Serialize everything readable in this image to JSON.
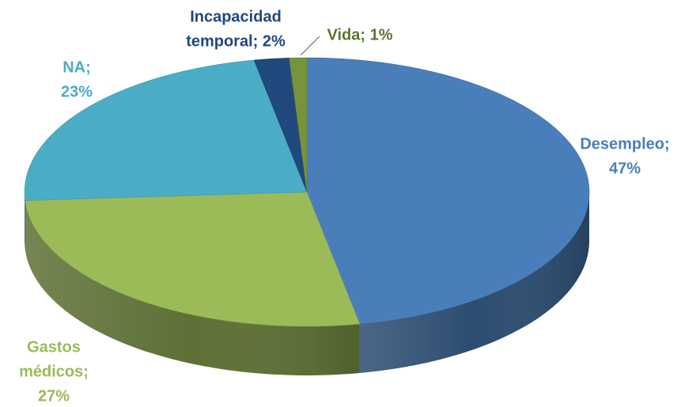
{
  "chart_data": {
    "type": "pie",
    "values": [
      47,
      27,
      23,
      2,
      1
    ],
    "value_labels": [
      [
        "Desempleo;",
        "47%"
      ],
      [
        "Gastos",
        "médicos;",
        "27%"
      ],
      [
        "NA;",
        "23%"
      ],
      [
        "Incapacidad",
        "temporal; 2%"
      ],
      [
        "Vida; 1%"
      ]
    ],
    "colors": [
      "#4a7ebb",
      "#9bbb59",
      "#4bacc6",
      "#1f497d",
      "#77933c"
    ],
    "label_colors": [
      "#4a7ebb",
      "#9bbb59",
      "#4bacc6",
      "#1f497d",
      "#5f7530"
    ]
  }
}
